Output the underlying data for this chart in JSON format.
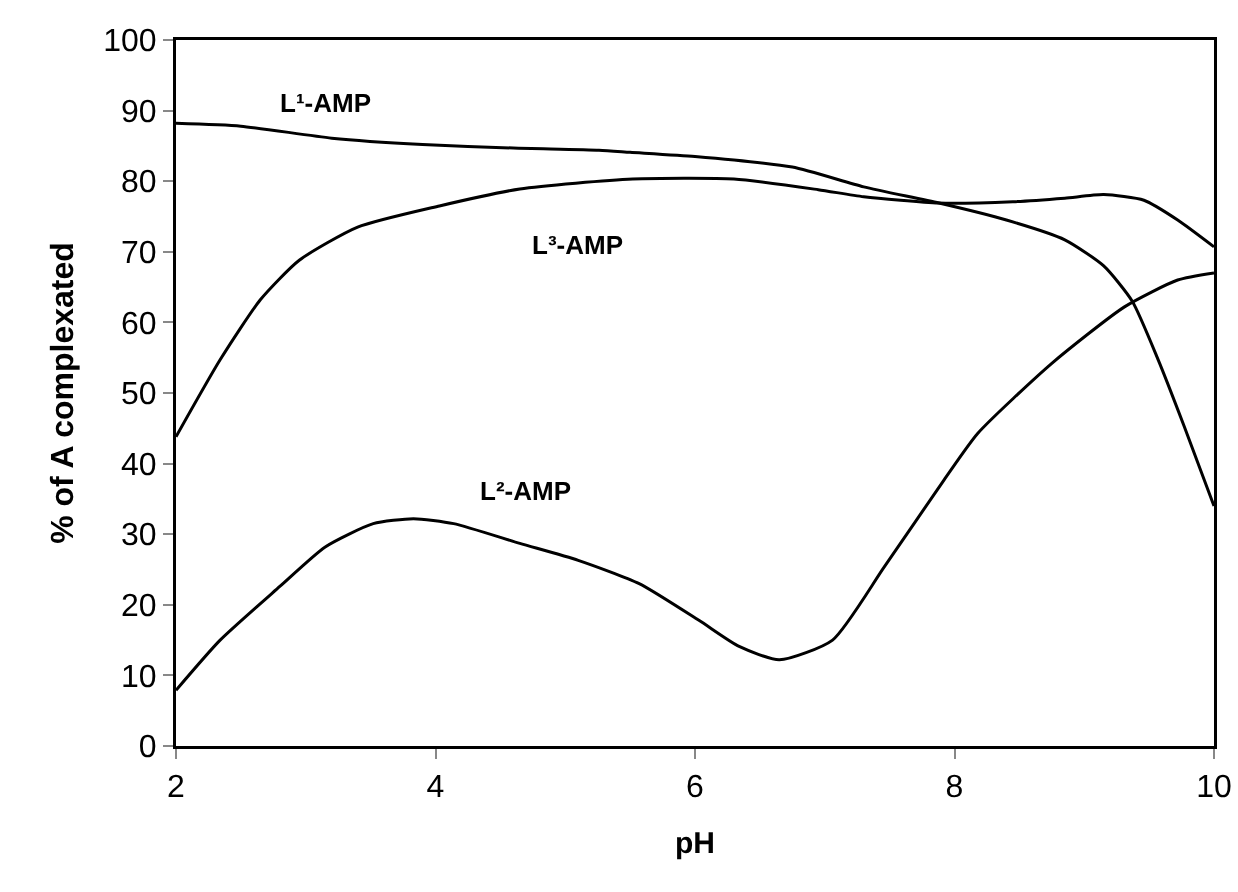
{
  "chart_data": {
    "type": "line",
    "xlabel": "pH",
    "ylabel": "% of A complexated",
    "xlim": [
      2,
      10
    ],
    "xticks": [
      2,
      4,
      6,
      8,
      10
    ],
    "ylim": [
      0,
      100
    ],
    "yticks": [
      0,
      10,
      20,
      30,
      40,
      50,
      60,
      70,
      80,
      90,
      100
    ],
    "grid": false,
    "legend": false,
    "marker": "none",
    "line_style": "solid",
    "series": [
      {
        "name": "L¹-AMP",
        "color": "#000000",
        "x": [
          2,
          2.5,
          3.2,
          3.9,
          4.6,
          5.26,
          5.5,
          6.0,
          6.75,
          7.3,
          7.88,
          8.4,
          8.85,
          9.15,
          9.37,
          9.57,
          9.77,
          10
        ],
        "values": [
          88.2,
          87.8,
          86.1,
          85.2,
          84.7,
          84.4,
          84.1,
          83.5,
          82,
          79.2,
          76.9,
          74.5,
          71.7,
          68,
          63,
          54.7,
          45.3,
          34
        ]
      },
      {
        "name": "L²-AMP",
        "color": "#000000",
        "x": [
          2,
          2.34,
          2.8,
          3.15,
          3.52,
          3.83,
          4.14,
          4.65,
          5.1,
          5.57,
          6.03,
          6.34,
          6.65,
          7.06,
          7.46,
          7.92,
          8.18,
          8.75,
          9.31,
          9.72,
          10
        ],
        "values": [
          7.9,
          15,
          22.6,
          28.2,
          31.5,
          32.2,
          31.5,
          28.7,
          26.3,
          23,
          17.8,
          14.1,
          12.2,
          15,
          25.4,
          37.7,
          44.3,
          54.2,
          62.2,
          66,
          67
        ]
      },
      {
        "name": "L³-AMP",
        "color": "#000000",
        "x": [
          2,
          2.34,
          2.65,
          2.95,
          3.4,
          4.03,
          4.65,
          5.52,
          6.3,
          6.95,
          7.3,
          7.88,
          8.45,
          8.85,
          9.15,
          9.46,
          9.72,
          10
        ],
        "values": [
          43.8,
          54.7,
          63.2,
          68.8,
          73.5,
          76.5,
          78.9,
          80.3,
          80.3,
          78.8,
          77.8,
          76.9,
          77.1,
          77.6,
          78.1,
          77.3,
          74.5,
          70.7
        ]
      }
    ]
  }
}
